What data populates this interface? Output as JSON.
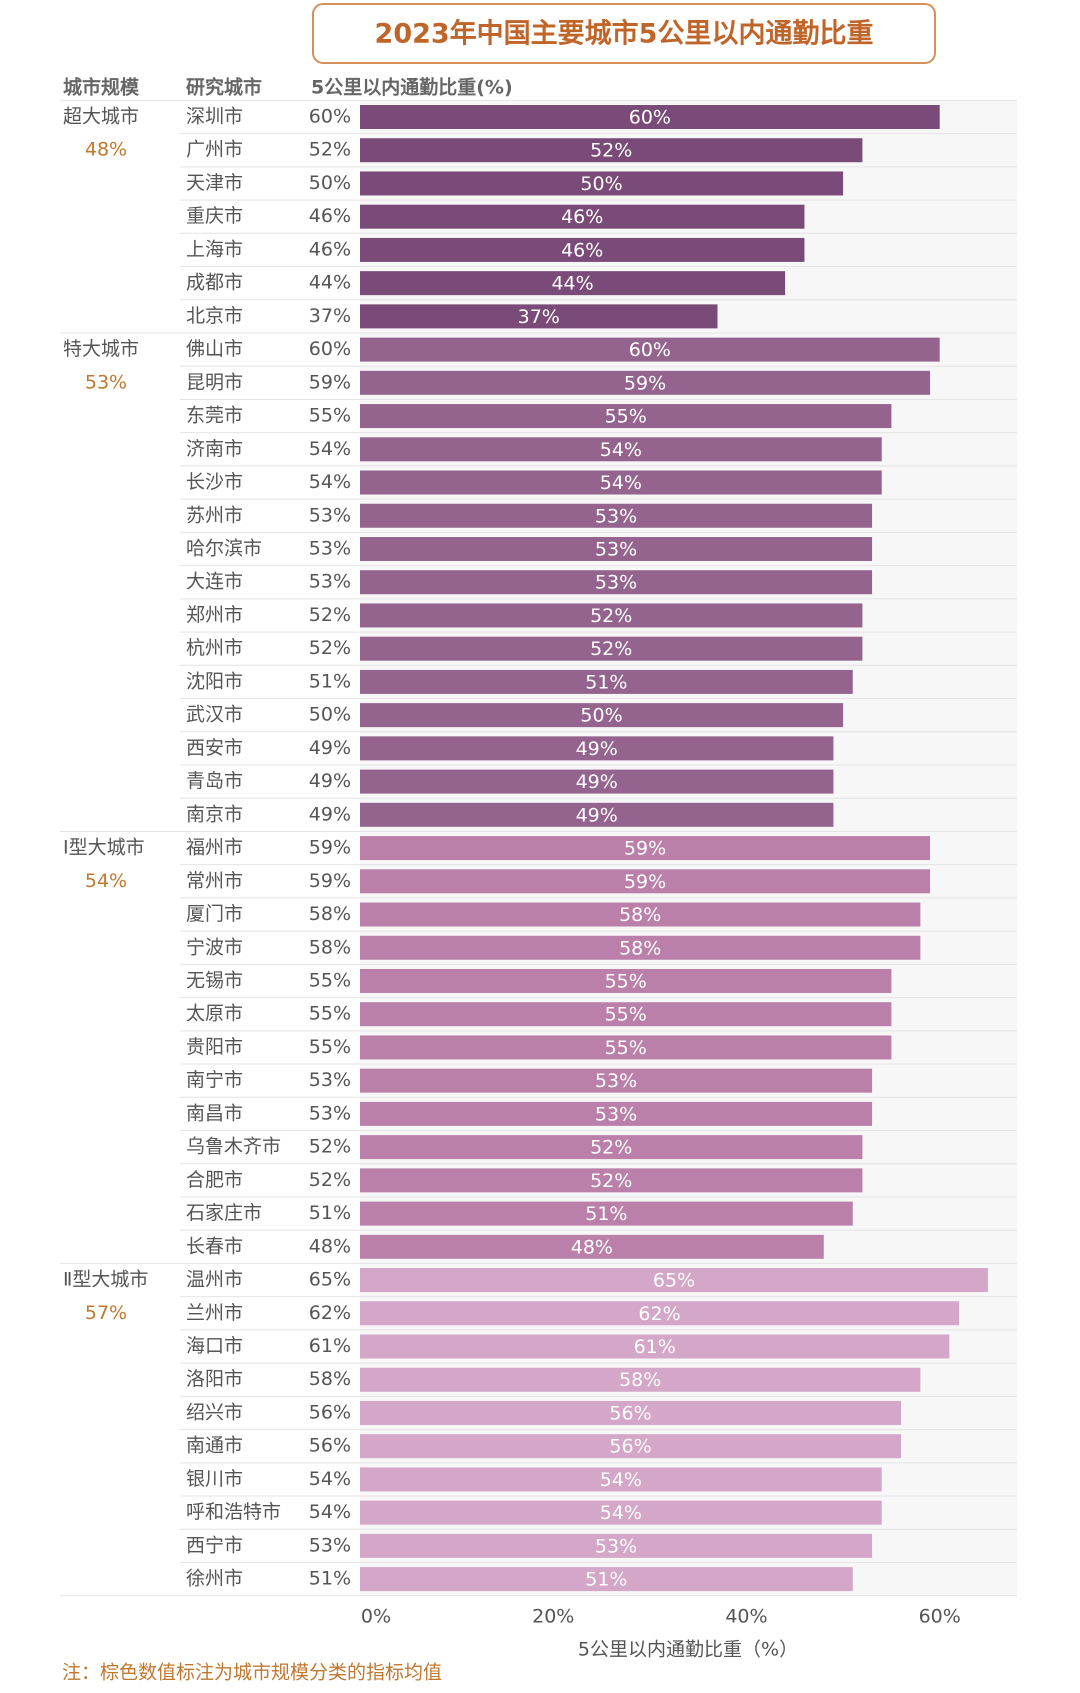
{
  "chart_data": {
    "type": "bar",
    "title": "2023年中国主要城市5公里以内通勤比重",
    "column_headers": [
      "城市规模",
      "研究城市",
      "5公里以内通勤比重(%)"
    ],
    "x_label": "5公里以内通勤比重（%）",
    "note": "注：棕色数值标注为城市规模分类的指标均值",
    "xlim": [
      0,
      68
    ],
    "xticks": [
      {
        "value": 0,
        "label": "0%"
      },
      {
        "value": 20,
        "label": "20%"
      },
      {
        "value": 40,
        "label": "40%"
      },
      {
        "value": 60,
        "label": "60%"
      }
    ],
    "groups": [
      {
        "name": "超大城市",
        "mean": {
          "value": 48,
          "label": "48%"
        },
        "color": "#7a4a78",
        "categories": [
          "深圳市",
          "广州市",
          "天津市",
          "重庆市",
          "上海市",
          "成都市",
          "北京市"
        ],
        "values": [
          60,
          52,
          50,
          46,
          46,
          44,
          37
        ],
        "value_labels": [
          "60%",
          "52%",
          "50%",
          "46%",
          "46%",
          "44%",
          "37%"
        ]
      },
      {
        "name": "特大城市",
        "mean": {
          "value": 53,
          "label": "53%"
        },
        "color": "#94648f",
        "categories": [
          "佛山市",
          "昆明市",
          "东莞市",
          "济南市",
          "长沙市",
          "苏州市",
          "哈尔滨市",
          "大连市",
          "郑州市",
          "杭州市",
          "沈阳市",
          "武汉市",
          "西安市",
          "青岛市",
          "南京市"
        ],
        "values": [
          60,
          59,
          55,
          54,
          54,
          53,
          53,
          53,
          52,
          52,
          51,
          50,
          49,
          49,
          49
        ],
        "value_labels": [
          "60%",
          "59%",
          "55%",
          "54%",
          "54%",
          "53%",
          "53%",
          "53%",
          "52%",
          "52%",
          "51%",
          "50%",
          "49%",
          "49%",
          "49%"
        ]
      },
      {
        "name": "Ⅰ型大城市",
        "mean": {
          "value": 54,
          "label": "54%"
        },
        "color": "#ba80aa",
        "categories": [
          "福州市",
          "常州市",
          "厦门市",
          "宁波市",
          "无锡市",
          "太原市",
          "贵阳市",
          "南宁市",
          "南昌市",
          "乌鲁木齐市",
          "合肥市",
          "石家庄市",
          "长春市"
        ],
        "values": [
          59,
          59,
          58,
          58,
          55,
          55,
          55,
          53,
          53,
          52,
          52,
          51,
          48
        ],
        "value_labels": [
          "59%",
          "59%",
          "58%",
          "58%",
          "55%",
          "55%",
          "55%",
          "53%",
          "53%",
          "52%",
          "52%",
          "51%",
          "48%"
        ]
      },
      {
        "name": "Ⅱ型大城市",
        "mean": {
          "value": 57,
          "label": "57%"
        },
        "color": "#d4a6c8",
        "categories": [
          "温州市",
          "兰州市",
          "海口市",
          "洛阳市",
          "绍兴市",
          "南通市",
          "银川市",
          "呼和浩特市",
          "西宁市",
          "徐州市"
        ],
        "values": [
          65,
          62,
          61,
          58,
          56,
          56,
          54,
          54,
          53,
          51
        ],
        "value_labels": [
          "65%",
          "62%",
          "61%",
          "58%",
          "56%",
          "56%",
          "54%",
          "54%",
          "53%",
          "51%"
        ]
      }
    ]
  }
}
